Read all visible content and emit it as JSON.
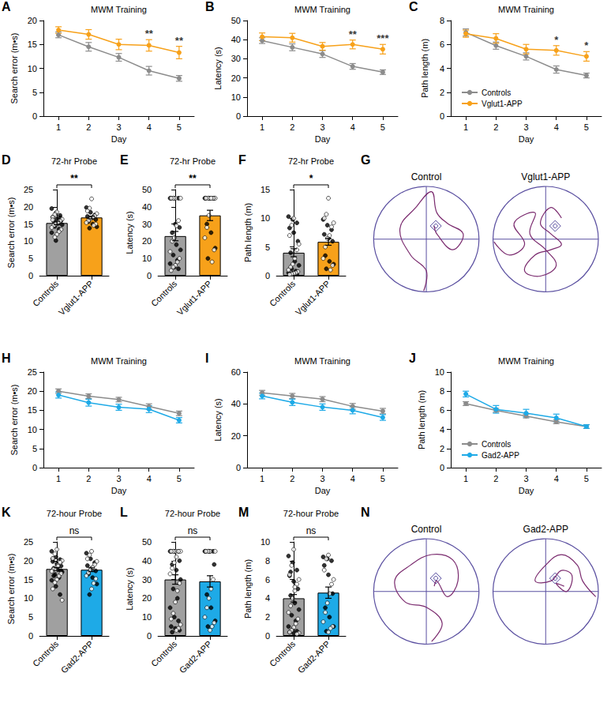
{
  "chart_data": [
    {
      "panel": "A",
      "type": "line",
      "title": "MWM Training",
      "xlabel": "Day",
      "ylabel": "Search error (m•s)",
      "x": [
        1,
        2,
        3,
        4,
        5
      ],
      "xlim": [
        0.5,
        5.5
      ],
      "xticks": [
        1,
        2,
        3,
        4,
        5
      ],
      "ylim": [
        0,
        20
      ],
      "yticks": [
        0,
        5,
        10,
        15,
        20
      ],
      "grid": false,
      "marker": "circle",
      "series": [
        {
          "name": "Controls",
          "color": "#8c8c8c",
          "values": [
            17,
            14.5,
            12.3,
            9.5,
            7.9
          ],
          "errors": [
            0.6,
            0.9,
            0.8,
            0.9,
            0.6
          ]
        },
        {
          "name": "Vglut1-APP",
          "color": "#f7a11a",
          "values": [
            18,
            17.1,
            15,
            14.8,
            13.3
          ],
          "errors": [
            0.7,
            1.0,
            1.1,
            1.2,
            1.3
          ]
        }
      ],
      "significance": [
        null,
        null,
        null,
        "**",
        "**"
      ]
    },
    {
      "panel": "B",
      "type": "line",
      "title": "MWM Training",
      "xlabel": "Day",
      "ylabel": "Latency (s)",
      "x": [
        1,
        2,
        3,
        4,
        5
      ],
      "xlim": [
        0.5,
        5.5
      ],
      "xticks": [
        1,
        2,
        3,
        4,
        5
      ],
      "ylim": [
        0,
        50
      ],
      "yticks": [
        0,
        10,
        20,
        30,
        40,
        50
      ],
      "grid": false,
      "marker": "circle",
      "series": [
        {
          "name": "Controls",
          "color": "#8c8c8c",
          "values": [
            39.5,
            36,
            32.5,
            26,
            23
          ],
          "errors": [
            1.5,
            1.8,
            1.8,
            1.5,
            1.2
          ]
        },
        {
          "name": "Vglut1-APP",
          "color": "#f7a11a",
          "values": [
            41.5,
            41,
            36.5,
            37.5,
            35
          ],
          "errors": [
            2.0,
            2.3,
            2.0,
            2.3,
            2.5
          ]
        }
      ],
      "significance": [
        null,
        null,
        null,
        "**",
        "***"
      ]
    },
    {
      "panel": "C",
      "type": "line",
      "title": "MWM Training",
      "xlabel": "Day",
      "ylabel": "Path length (m)",
      "x": [
        1,
        2,
        3,
        4,
        5
      ],
      "xlim": [
        0.5,
        5.5
      ],
      "xticks": [
        1,
        2,
        3,
        4,
        5
      ],
      "ylim": [
        0,
        8
      ],
      "yticks": [
        0,
        2,
        4,
        6,
        8
      ],
      "grid": false,
      "marker": "circle",
      "legend": "lower left",
      "series": [
        {
          "name": "Controls",
          "color": "#8c8c8c",
          "values": [
            7,
            5.9,
            5,
            3.9,
            3.4
          ],
          "errors": [
            0.3,
            0.3,
            0.3,
            0.3,
            0.2
          ]
        },
        {
          "name": "Vglut1-APP",
          "color": "#f7a11a",
          "values": [
            6.9,
            6.5,
            5.6,
            5.5,
            5
          ],
          "errors": [
            0.3,
            0.4,
            0.4,
            0.4,
            0.4
          ]
        }
      ],
      "significance": [
        null,
        null,
        null,
        "*",
        "*"
      ]
    },
    {
      "panel": "D",
      "type": "bar",
      "title": "72-hr Probe",
      "ylabel": "Search error (m•s)",
      "categories": [
        "Controls",
        "Vglut1-APP"
      ],
      "values": [
        15.3,
        16.9
      ],
      "errors": [
        0.5,
        0.4
      ],
      "colors": [
        "#a0a0a0",
        "#f7a11a"
      ],
      "points_filled": [
        [
          19.5,
          18.2,
          17.5,
          17,
          16.5,
          16,
          15.8,
          15.2,
          14.8,
          14.3,
          13.5,
          12.5,
          10.2,
          16.8
        ],
        [
          19.8,
          18.4,
          17.6,
          17.2,
          16.8,
          16.3,
          15.7,
          15,
          14.2,
          13.8
        ]
      ],
      "points_open": [
        [
          18.5,
          17.8,
          17,
          16.4,
          15.9,
          15.5,
          15,
          14.6,
          14,
          13.4,
          12.8,
          12,
          11.2,
          16.2
        ],
        [
          22.3,
          19.6,
          18.8,
          18,
          17.4,
          16.9,
          16.5,
          16,
          15.4,
          15,
          14.6
        ]
      ],
      "ylim": [
        0,
        25
      ],
      "yticks": [
        0,
        5,
        10,
        15,
        20,
        25
      ],
      "grid": false,
      "significance": "**"
    },
    {
      "panel": "E",
      "type": "bar",
      "title": "72-hr Probe",
      "ylabel": "Latency (s)",
      "categories": [
        "Controls",
        "Vglut1-APP"
      ],
      "values": [
        23,
        35
      ],
      "errors": [
        2.7,
        3.0
      ],
      "colors": [
        "#a0a0a0",
        "#f7a11a"
      ],
      "points_filled": [
        [
          45,
          45,
          45,
          45,
          30,
          28,
          25,
          18,
          15,
          12,
          9,
          7,
          5,
          4
        ],
        [
          45,
          45,
          45,
          45,
          45,
          45,
          30,
          25,
          16,
          10
        ]
      ],
      "points_open": [
        [
          45,
          45,
          45,
          45,
          32,
          29,
          22,
          20,
          14,
          10,
          8,
          6,
          5,
          3
        ],
        [
          45,
          45,
          45,
          45,
          45,
          45,
          35,
          28,
          22,
          15,
          8
        ]
      ],
      "ylim": [
        0,
        50
      ],
      "yticks": [
        0,
        10,
        20,
        30,
        40,
        50
      ],
      "grid": false,
      "significance": "**"
    },
    {
      "panel": "F",
      "type": "bar",
      "title": "72-hr Probe",
      "ylabel": "Path length (m)",
      "categories": [
        "Controls",
        "Vglut1-APP"
      ],
      "values": [
        4,
        5.9
      ],
      "errors": [
        0.7,
        0.6
      ],
      "colors": [
        "#a0a0a0",
        "#f7a11a"
      ],
      "points_filled": [
        [
          10.3,
          9.8,
          9.2,
          8.3,
          7.5,
          6,
          4,
          2.5,
          1.8,
          1.2,
          0.8,
          0.5,
          0.4,
          0.3
        ],
        [
          9.8,
          8.8,
          8,
          7.2,
          6.5,
          6,
          3.5,
          2.5,
          2,
          1.2
        ]
      ],
      "points_open": [
        [
          10,
          8.8,
          7,
          5.5,
          4.5,
          3,
          2,
          1.5,
          1,
          0.7,
          0.5,
          0.4,
          0.3,
          0.2
        ],
        [
          13.5,
          10.7,
          10,
          9.2,
          8.5,
          7,
          6.5,
          5,
          3,
          1.8,
          1
        ]
      ],
      "ylim": [
        0,
        15
      ],
      "yticks": [
        0,
        5,
        10,
        15
      ],
      "grid": false,
      "significance": "*"
    },
    {
      "panel": "G",
      "type": "diagram",
      "titles": [
        "Control",
        "Vglut1-APP"
      ]
    },
    {
      "panel": "H",
      "type": "line",
      "title": "MWM Training",
      "xlabel": "Day",
      "ylabel": "Search error (m•s)",
      "x": [
        1,
        2,
        3,
        4,
        5
      ],
      "xlim": [
        0.5,
        5.5
      ],
      "xticks": [
        1,
        2,
        3,
        4,
        5
      ],
      "ylim": [
        0,
        25
      ],
      "yticks": [
        0,
        5,
        10,
        15,
        20,
        25
      ],
      "grid": false,
      "marker": "circle",
      "series": [
        {
          "name": "Controls",
          "color": "#8c8c8c",
          "values": [
            20,
            18.7,
            17.8,
            16,
            14.2
          ],
          "errors": [
            0.6,
            0.6,
            0.6,
            0.7,
            0.6
          ]
        },
        {
          "name": "Gad2-APP",
          "color": "#1eaae7",
          "values": [
            19,
            17,
            15.8,
            15.3,
            12.4
          ],
          "errors": [
            0.8,
            0.9,
            0.8,
            0.9,
            0.7
          ]
        }
      ]
    },
    {
      "panel": "I",
      "type": "line",
      "title": "MWM Training",
      "xlabel": "Day",
      "ylabel": "Latency (s)",
      "x": [
        1,
        2,
        3,
        4,
        5
      ],
      "xlim": [
        0.5,
        5.5
      ],
      "xticks": [
        1,
        2,
        3,
        4,
        5
      ],
      "ylim": [
        0,
        60
      ],
      "yticks": [
        0,
        20,
        40,
        60
      ],
      "grid": false,
      "marker": "circle",
      "series": [
        {
          "name": "Controls",
          "color": "#8c8c8c",
          "values": [
            47,
            45,
            43,
            38.5,
            35.5
          ],
          "errors": [
            1.5,
            1.6,
            1.6,
            1.8,
            1.7
          ]
        },
        {
          "name": "Gad2-APP",
          "color": "#1eaae7",
          "values": [
            45,
            41,
            38,
            36,
            31.5
          ],
          "errors": [
            1.8,
            2.0,
            2.0,
            2.2,
            1.8
          ]
        }
      ]
    },
    {
      "panel": "J",
      "type": "line",
      "title": "MWM Training",
      "xlabel": "Day",
      "ylabel": "Path length (m)",
      "x": [
        1,
        2,
        3,
        4,
        5
      ],
      "xlim": [
        0.5,
        5.5
      ],
      "xticks": [
        1,
        2,
        3,
        4,
        5
      ],
      "ylim": [
        0,
        10
      ],
      "yticks": [
        0,
        2,
        4,
        6,
        8,
        10
      ],
      "grid": false,
      "marker": "circle",
      "legend": "lower left",
      "series": [
        {
          "name": "Controls",
          "color": "#8c8c8c",
          "values": [
            6.7,
            6,
            5.4,
            4.8,
            4.3
          ],
          "errors": [
            0.2,
            0.2,
            0.2,
            0.2,
            0.2
          ]
        },
        {
          "name": "Gad2-APP",
          "color": "#1eaae7",
          "values": [
            7.7,
            6.1,
            5.7,
            5.2,
            4.3
          ],
          "errors": [
            0.3,
            0.4,
            0.4,
            0.4,
            0.2
          ]
        }
      ]
    },
    {
      "panel": "K",
      "type": "bar",
      "title": "72-hour Probe",
      "ylabel": "Search error (m•s)",
      "categories": [
        "Controls",
        "Gad2-APP"
      ],
      "values": [
        17.8,
        17.6
      ],
      "errors": [
        0.4,
        0.5
      ],
      "colors": [
        "#a0a0a0",
        "#1eaae7"
      ],
      "points_filled": [
        [
          22.5,
          21,
          20.3,
          19.8,
          19.2,
          18.6,
          18,
          17.6,
          17,
          16.3,
          15.5,
          14.8,
          13.2,
          11,
          20.5,
          18.3,
          17.3,
          16
        ],
        [
          22,
          20.5,
          19.5,
          18.7,
          18,
          17.3,
          16.5,
          15.5,
          13.8,
          11
        ]
      ],
      "points_open": [
        [
          23,
          21.8,
          20.6,
          20,
          19.4,
          18.8,
          18.2,
          17.8,
          17.2,
          16.6,
          15.9,
          15,
          14.2,
          12.5,
          9.5,
          19.6,
          18.5,
          17.5
        ],
        [
          22.5,
          21.5,
          20.5,
          19.8,
          19,
          18.2,
          17.6,
          16.8,
          16,
          15.2,
          14,
          12.5
        ]
      ],
      "ylim": [
        0,
        25
      ],
      "yticks": [
        0,
        5,
        10,
        15,
        20,
        25
      ],
      "grid": false,
      "significance": "ns"
    },
    {
      "panel": "L",
      "type": "bar",
      "title": "72-hour Probe",
      "ylabel": "Latency (s)",
      "categories": [
        "Controls",
        "Gad2-APP"
      ],
      "values": [
        30,
        29
      ],
      "errors": [
        2.5,
        3.0
      ],
      "colors": [
        "#a0a0a0",
        "#1eaae7"
      ],
      "points_filled": [
        [
          45,
          45,
          45,
          45,
          45,
          40,
          38,
          35,
          30,
          25,
          20,
          15,
          10,
          8,
          5,
          4,
          3,
          2
        ],
        [
          45,
          45,
          45,
          45,
          45,
          38,
          22,
          15,
          8,
          5
        ]
      ],
      "points_open": [
        [
          45,
          45,
          45,
          45,
          45,
          42,
          39,
          36,
          33,
          28,
          24,
          18,
          12,
          9,
          6,
          4,
          3
        ],
        [
          45,
          45,
          45,
          45,
          30,
          25,
          20,
          15,
          10,
          7,
          5,
          3
        ]
      ],
      "ylim": [
        0,
        50
      ],
      "yticks": [
        0,
        10,
        20,
        30,
        40,
        50
      ],
      "grid": false,
      "significance": "ns"
    },
    {
      "panel": "M",
      "type": "bar",
      "title": "72-hour Probe",
      "ylabel": "Path length (m)",
      "categories": [
        "Controls",
        "Gad2-APP"
      ],
      "values": [
        4,
        4.6
      ],
      "errors": [
        0.4,
        0.6
      ],
      "colors": [
        "#a0a0a0",
        "#1eaae7"
      ],
      "points_filled": [
        [
          8.5,
          7.8,
          7,
          6.4,
          5.8,
          5,
          4.3,
          3.5,
          2.8,
          2.2,
          1.6,
          1,
          0.7,
          0.5,
          0.4,
          0.3,
          0.2,
          6.8
        ],
        [
          8.4,
          8.2,
          8,
          7.5,
          6.5,
          4.5,
          3,
          2,
          1,
          0.5
        ]
      ],
      "points_open": [
        [
          9.2,
          7.5,
          6.5,
          6,
          5.5,
          4.8,
          4,
          3.2,
          2.5,
          1.8,
          1.3,
          0.9,
          0.6,
          0.4,
          0.3,
          0.2,
          5.2
        ],
        [
          8.6,
          8.2,
          7,
          6,
          5.5,
          4.5,
          3.5,
          2.5,
          1.5,
          1,
          0.8,
          0.4
        ]
      ],
      "ylim": [
        0,
        10
      ],
      "yticks": [
        0,
        2,
        4,
        6,
        8,
        10
      ],
      "grid": false,
      "significance": "ns"
    },
    {
      "panel": "N",
      "type": "diagram",
      "titles": [
        "Control",
        "Gad2-APP"
      ]
    }
  ]
}
